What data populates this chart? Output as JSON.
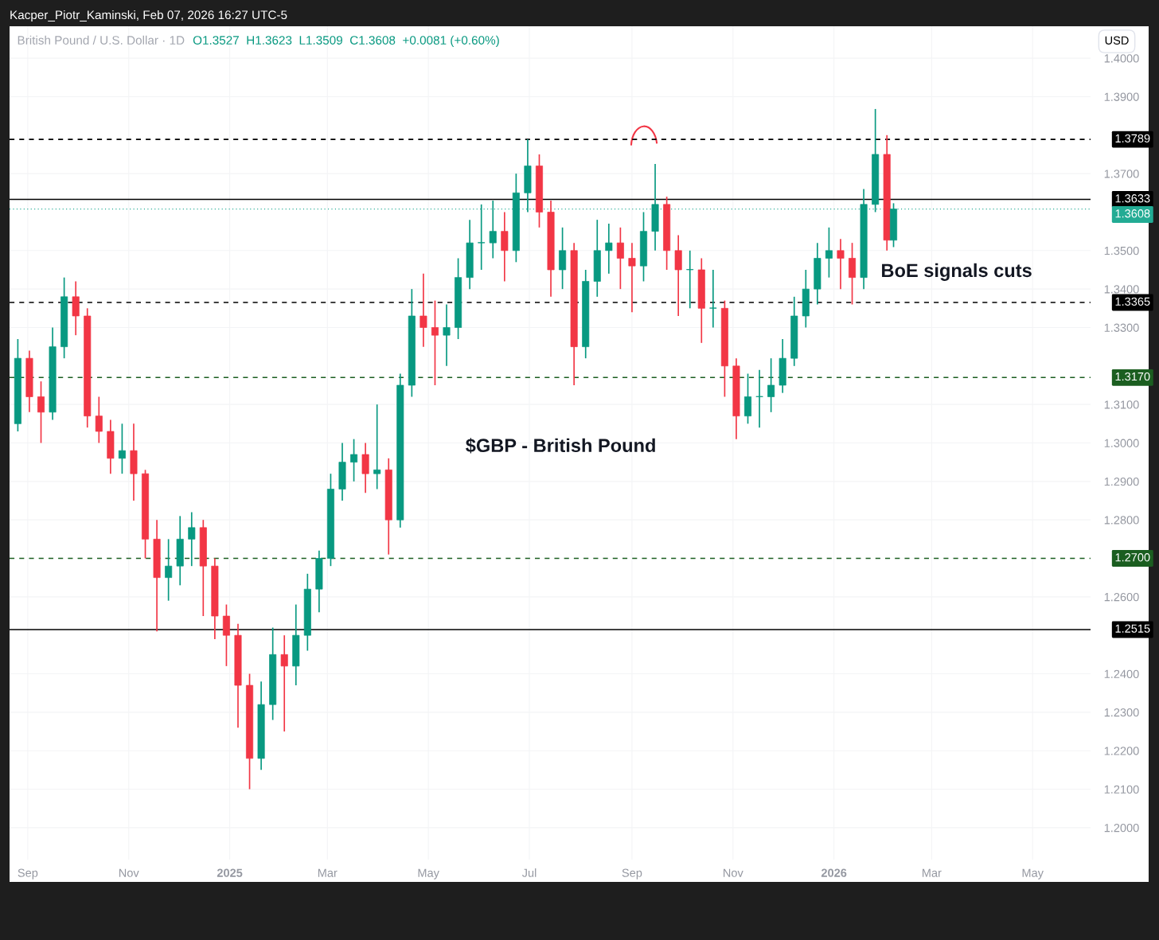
{
  "chart_data": {
    "type": "candlestick",
    "title": "British Pound / U.S. Dollar · 1D",
    "subtitle": "Kacper_Piotr_Kaminski, Feb 07, 2026 16:27 UTC-5",
    "annotations": [
      "O1.3527  H1.3623  L1.3509  C1.3608  +0.0081 (+0.60%)",
      "USD",
      "$GBP - British Pound",
      "BoE signals cuts"
    ],
    "x": [
      "2024-08-26",
      "2024-09-02",
      "2024-09-09",
      "2024-09-16",
      "2024-09-23",
      "2024-09-30",
      "2024-10-07",
      "2024-10-14",
      "2024-10-21",
      "2024-10-28",
      "2024-11-04",
      "2024-11-11",
      "2024-11-18",
      "2024-11-25",
      "2024-12-02",
      "2024-12-09",
      "2024-12-16",
      "2024-12-23",
      "2024-12-30",
      "2025-01-06",
      "2025-01-13",
      "2025-01-20",
      "2025-01-27",
      "2025-02-03",
      "2025-02-10",
      "2025-02-17",
      "2025-02-24",
      "2025-03-03",
      "2025-03-10",
      "2025-03-17",
      "2025-03-24",
      "2025-03-31",
      "2025-04-07",
      "2025-04-14",
      "2025-04-21",
      "2025-04-28",
      "2025-05-05",
      "2025-05-12",
      "2025-05-19",
      "2025-05-26",
      "2025-06-02",
      "2025-06-09",
      "2025-06-16",
      "2025-06-23",
      "2025-06-30",
      "2025-07-07",
      "2025-07-14",
      "2025-07-21",
      "2025-07-28",
      "2025-08-04",
      "2025-08-11",
      "2025-08-18",
      "2025-08-25",
      "2025-09-01",
      "2025-09-08",
      "2025-09-15",
      "2025-09-22",
      "2025-09-29",
      "2025-10-06",
      "2025-10-13",
      "2025-10-20",
      "2025-10-27",
      "2025-11-03",
      "2025-11-10",
      "2025-11-17",
      "2025-11-24",
      "2025-12-01",
      "2025-12-08",
      "2025-12-15",
      "2025-12-22",
      "2025-12-29",
      "2026-01-05",
      "2026-01-12",
      "2026-01-19",
      "2026-01-26",
      "2026-02-02",
      "2026-02-06"
    ],
    "ohlc": [
      [
        1.305,
        1.327,
        1.303,
        1.322
      ],
      [
        1.322,
        1.324,
        1.308,
        1.312
      ],
      [
        1.312,
        1.316,
        1.3,
        1.308
      ],
      [
        1.308,
        1.33,
        1.306,
        1.325
      ],
      [
        1.325,
        1.343,
        1.322,
        1.338
      ],
      [
        1.338,
        1.342,
        1.328,
        1.333
      ],
      [
        1.333,
        1.335,
        1.304,
        1.307
      ],
      [
        1.307,
        1.312,
        1.3,
        1.303
      ],
      [
        1.303,
        1.306,
        1.292,
        1.296
      ],
      [
        1.296,
        1.305,
        1.292,
        1.298
      ],
      [
        1.298,
        1.305,
        1.285,
        1.292
      ],
      [
        1.292,
        1.293,
        1.27,
        1.275
      ],
      [
        1.275,
        1.28,
        1.251,
        1.265
      ],
      [
        1.265,
        1.275,
        1.259,
        1.268
      ],
      [
        1.268,
        1.281,
        1.263,
        1.275
      ],
      [
        1.275,
        1.282,
        1.268,
        1.278
      ],
      [
        1.278,
        1.28,
        1.255,
        1.268
      ],
      [
        1.268,
        1.27,
        1.249,
        1.255
      ],
      [
        1.255,
        1.258,
        1.242,
        1.25
      ],
      [
        1.25,
        1.253,
        1.226,
        1.237
      ],
      [
        1.237,
        1.24,
        1.21,
        1.218
      ],
      [
        1.218,
        1.238,
        1.215,
        1.232
      ],
      [
        1.232,
        1.252,
        1.228,
        1.245
      ],
      [
        1.245,
        1.25,
        1.225,
        1.242
      ],
      [
        1.242,
        1.258,
        1.237,
        1.25
      ],
      [
        1.25,
        1.266,
        1.246,
        1.262
      ],
      [
        1.262,
        1.272,
        1.256,
        1.27
      ],
      [
        1.27,
        1.292,
        1.268,
        1.288
      ],
      [
        1.288,
        1.3,
        1.285,
        1.295
      ],
      [
        1.295,
        1.301,
        1.29,
        1.297
      ],
      [
        1.297,
        1.3,
        1.287,
        1.292
      ],
      [
        1.292,
        1.31,
        1.288,
        1.293
      ],
      [
        1.293,
        1.296,
        1.271,
        1.28
      ],
      [
        1.28,
        1.318,
        1.278,
        1.315
      ],
      [
        1.315,
        1.34,
        1.312,
        1.333
      ],
      [
        1.333,
        1.344,
        1.325,
        1.33
      ],
      [
        1.33,
        1.337,
        1.315,
        1.328
      ],
      [
        1.328,
        1.336,
        1.32,
        1.33
      ],
      [
        1.33,
        1.348,
        1.327,
        1.343
      ],
      [
        1.343,
        1.358,
        1.34,
        1.352
      ],
      [
        1.352,
        1.362,
        1.345,
        1.352
      ],
      [
        1.352,
        1.363,
        1.348,
        1.355
      ],
      [
        1.355,
        1.36,
        1.342,
        1.35
      ],
      [
        1.35,
        1.37,
        1.347,
        1.365
      ],
      [
        1.365,
        1.3789,
        1.36,
        1.372
      ],
      [
        1.372,
        1.375,
        1.356,
        1.36
      ],
      [
        1.36,
        1.363,
        1.338,
        1.345
      ],
      [
        1.345,
        1.356,
        1.34,
        1.35
      ],
      [
        1.35,
        1.352,
        1.315,
        1.325
      ],
      [
        1.325,
        1.345,
        1.322,
        1.342
      ],
      [
        1.342,
        1.358,
        1.338,
        1.35
      ],
      [
        1.35,
        1.357,
        1.344,
        1.352
      ],
      [
        1.352,
        1.356,
        1.34,
        1.348
      ],
      [
        1.348,
        1.352,
        1.334,
        1.346
      ],
      [
        1.346,
        1.36,
        1.342,
        1.355
      ],
      [
        1.355,
        1.3725,
        1.35,
        1.362
      ],
      [
        1.362,
        1.364,
        1.345,
        1.35
      ],
      [
        1.35,
        1.354,
        1.333,
        1.345
      ],
      [
        1.345,
        1.35,
        1.335,
        1.345
      ],
      [
        1.345,
        1.348,
        1.326,
        1.335
      ],
      [
        1.335,
        1.345,
        1.33,
        1.335
      ],
      [
        1.335,
        1.337,
        1.312,
        1.32
      ],
      [
        1.32,
        1.322,
        1.301,
        1.307
      ],
      [
        1.307,
        1.318,
        1.305,
        1.312
      ],
      [
        1.312,
        1.319,
        1.304,
        1.312
      ],
      [
        1.312,
        1.322,
        1.308,
        1.315
      ],
      [
        1.315,
        1.327,
        1.313,
        1.322
      ],
      [
        1.322,
        1.338,
        1.32,
        1.333
      ],
      [
        1.333,
        1.345,
        1.33,
        1.34
      ],
      [
        1.34,
        1.352,
        1.336,
        1.348
      ],
      [
        1.348,
        1.356,
        1.343,
        1.35
      ],
      [
        1.35,
        1.353,
        1.34,
        1.348
      ],
      [
        1.348,
        1.352,
        1.336,
        1.343
      ],
      [
        1.343,
        1.366,
        1.34,
        1.362
      ],
      [
        1.362,
        1.3868,
        1.36,
        1.375
      ],
      [
        1.375,
        1.38,
        1.35,
        1.3527
      ],
      [
        1.3527,
        1.3623,
        1.3509,
        1.3608
      ]
    ],
    "colors": [
      "#089981",
      "#f23645",
      "#f23645",
      "#089981",
      "#089981",
      "#f23645",
      "#f23645",
      "#f23645",
      "#f23645",
      "#089981",
      "#f23645",
      "#f23645",
      "#f23645",
      "#089981",
      "#089981",
      "#089981",
      "#f23645",
      "#f23645",
      "#f23645",
      "#f23645",
      "#f23645",
      "#089981",
      "#089981",
      "#f23645",
      "#089981",
      "#089981",
      "#089981",
      "#089981",
      "#089981",
      "#089981",
      "#f23645",
      "#089981",
      "#f23645",
      "#089981",
      "#089981",
      "#f23645",
      "#f23645",
      "#089981",
      "#089981",
      "#089981",
      "#089981",
      "#089981",
      "#f23645",
      "#089981",
      "#089981",
      "#f23645",
      "#f23645",
      "#089981",
      "#f23645",
      "#089981",
      "#089981",
      "#089981",
      "#f23645",
      "#f23645",
      "#089981",
      "#089981",
      "#f23645",
      "#f23645",
      "#089981",
      "#f23645",
      "#089981",
      "#f23645",
      "#f23645",
      "#089981",
      "#089981",
      "#089981",
      "#089981",
      "#089981",
      "#089981",
      "#089981",
      "#089981",
      "#f23645",
      "#f23645",
      "#089981",
      "#089981",
      "#f23645",
      "#089981"
    ],
    "xlim": [
      "2024-08-21",
      "2026-06-05"
    ],
    "xticks": [
      {
        "value": "2024-09-01",
        "label": "Sep"
      },
      {
        "value": "2024-11-01",
        "label": "Nov"
      },
      {
        "value": "2025-01-01",
        "label": "2025"
      },
      {
        "value": "2025-03-01",
        "label": "Mar"
      },
      {
        "value": "2025-05-01",
        "label": "May"
      },
      {
        "value": "2025-07-01",
        "label": "Jul"
      },
      {
        "value": "2025-09-01",
        "label": "Sep"
      },
      {
        "value": "2025-11-01",
        "label": "Nov"
      },
      {
        "value": "2026-01-01",
        "label": "2026"
      },
      {
        "value": "2026-03-01",
        "label": "Mar"
      },
      {
        "value": "2026-05-01",
        "label": "May"
      }
    ],
    "ylim": [
      1.1917,
      1.4083
    ],
    "yticks": [
      {
        "value": 1.2,
        "label": "1.2000"
      },
      {
        "value": 1.21,
        "label": "1.2100"
      },
      {
        "value": 1.22,
        "label": "1.2200"
      },
      {
        "value": 1.23,
        "label": "1.2300"
      },
      {
        "value": 1.24,
        "label": "1.2400"
      },
      {
        "value": 1.26,
        "label": "1.2600"
      },
      {
        "value": 1.28,
        "label": "1.2800"
      },
      {
        "value": 1.29,
        "label": "1.2900"
      },
      {
        "value": 1.3,
        "label": "1.3000"
      },
      {
        "value": 1.31,
        "label": "1.3100"
      },
      {
        "value": 1.33,
        "label": "1.3300"
      },
      {
        "value": 1.34,
        "label": "1.3400"
      },
      {
        "value": 1.35,
        "label": "1.3500"
      },
      {
        "value": 1.37,
        "label": "1.3700"
      },
      {
        "value": 1.39,
        "label": "1.3900"
      },
      {
        "value": 1.4,
        "label": "1.4000"
      }
    ],
    "ref_lines": [
      {
        "axis": "y",
        "value": 1.3789,
        "label": "1.3789",
        "color": "#000000",
        "line_style": "dashed"
      },
      {
        "axis": "y",
        "value": 1.3633,
        "label": "1.3633",
        "color": "#000000",
        "line_style": "solid"
      },
      {
        "axis": "y",
        "value": 1.3608,
        "label": "1.3608",
        "color": "#22ab94",
        "line_style": "dotted"
      },
      {
        "axis": "y",
        "value": 1.3365,
        "label": "1.3365",
        "color": "#000000",
        "line_style": "dashed"
      },
      {
        "axis": "y",
        "value": 1.317,
        "label": "1.3170",
        "color": "#1b5e20",
        "line_style": "dashed"
      },
      {
        "axis": "y",
        "value": 1.27,
        "label": "1.2700",
        "color": "#1b5e20",
        "line_style": "dashed"
      },
      {
        "axis": "y",
        "value": 1.2515,
        "label": "1.2515",
        "color": "#000000",
        "line_style": "solid"
      }
    ],
    "grid": true
  }
}
